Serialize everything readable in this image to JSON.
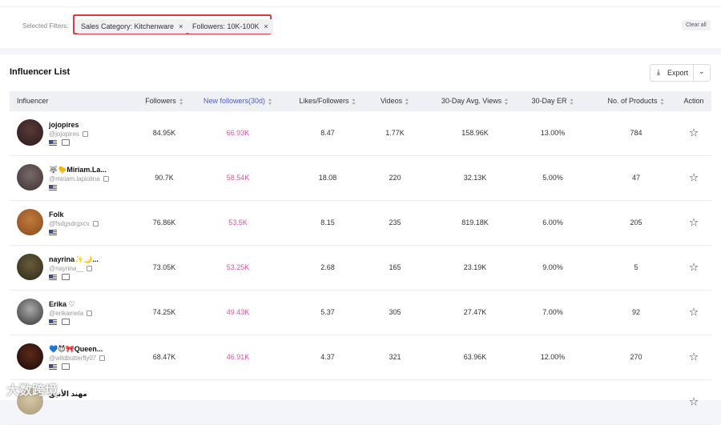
{
  "filters": {
    "label": "Selected Filters:",
    "chips": [
      "Sales Category: Kitchenware",
      "Followers: 10K-100K"
    ],
    "clear": "Clear all"
  },
  "list": {
    "title": "Influencer List",
    "export": "Export",
    "columns": [
      "Influencer",
      "Followers",
      "New followers(30d)",
      "Likes/Followers",
      "Videos",
      "30-Day Avg. Views",
      "30-Day ER",
      "No. of Products",
      "Action"
    ],
    "rows": [
      {
        "name": "jojopires",
        "handle": "@jojopires",
        "cells": [
          "84.95K",
          "66.93K",
          "8.47",
          "1.77K",
          "158.96K",
          "13.00%",
          "784"
        ]
      },
      {
        "name": "🐺🐤Miriam.La...",
        "handle": "@miriam.lapiolina",
        "cells": [
          "90.7K",
          "58.54K",
          "18.08",
          "220",
          "32.13K",
          "5.00%",
          "47"
        ]
      },
      {
        "name": "Folk",
        "handle": "@fsdgsdrgxcv",
        "cells": [
          "76.86K",
          "53.5K",
          "8.15",
          "235",
          "819.18K",
          "6.00%",
          "205"
        ]
      },
      {
        "name": "nayrina✨🌙...",
        "handle": "@nayrina__",
        "cells": [
          "73.05K",
          "53.25K",
          "2.68",
          "165",
          "23.19K",
          "9.00%",
          "5"
        ]
      },
      {
        "name": "Erika ♡",
        "handle": "@erikameta",
        "cells": [
          "74.25K",
          "49.43K",
          "5.37",
          "305",
          "27.47K",
          "7.00%",
          "92"
        ]
      },
      {
        "name": "💙😈🎀Queen...",
        "handle": "@wildbutterfly07",
        "cells": [
          "68.47K",
          "46.91K",
          "4.37",
          "321",
          "63.96K",
          "12.00%",
          "270"
        ]
      },
      {
        "name": "مهند الأنيق"
      }
    ]
  },
  "watermark": "大数跨境"
}
